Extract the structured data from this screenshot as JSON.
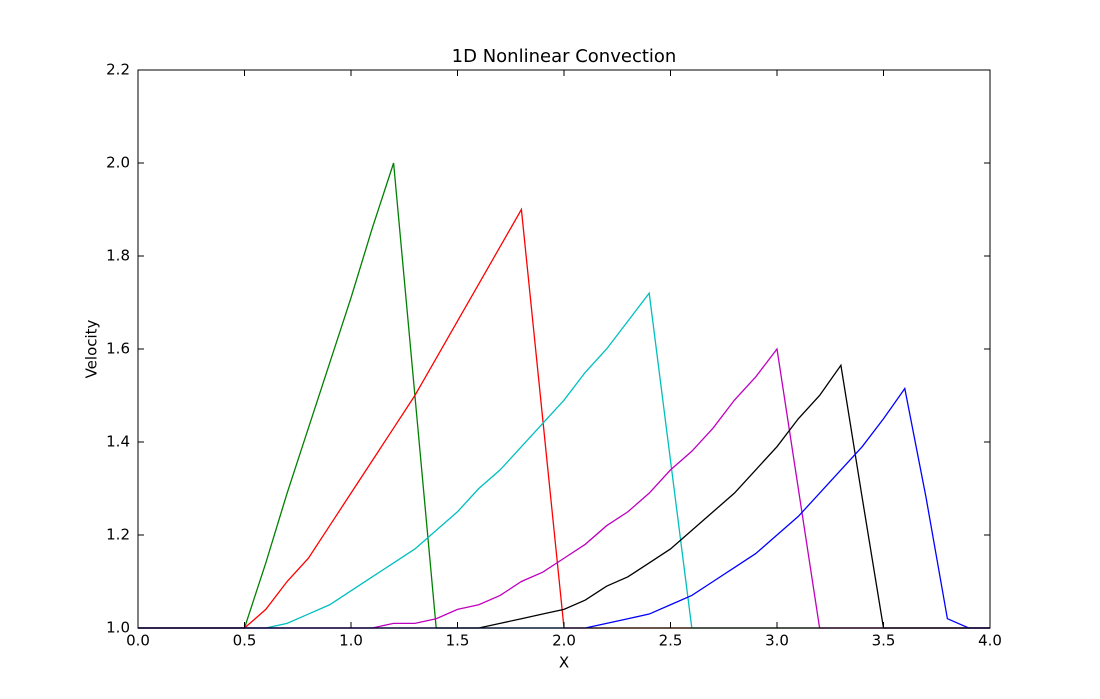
{
  "chart_data": {
    "type": "line",
    "title": "1D Nonlinear Convection",
    "x_label": "X",
    "y_label": "Velocity",
    "x": [
      0,
      0.1,
      0.2,
      0.3,
      0.4,
      0.5,
      0.6,
      0.7,
      0.8,
      0.9,
      1.0,
      1.1,
      1.2,
      1.3,
      1.4,
      1.5,
      1.6,
      1.7,
      1.8,
      1.9,
      2.0,
      2.1,
      2.2,
      2.3,
      2.4,
      2.5,
      2.6,
      2.7,
      2.8,
      2.9,
      3.0,
      3.1,
      3.2,
      3.3,
      3.4,
      3.5,
      3.6,
      3.7,
      3.8,
      3.9,
      4.0
    ],
    "series": [
      {
        "color": "#008000",
        "values": [
          1,
          1,
          1,
          1,
          1,
          1,
          1.14,
          1.29,
          1.43,
          1.57,
          1.71,
          1.86,
          2.0,
          1.5,
          1,
          1,
          1,
          1,
          1,
          1,
          1,
          1,
          1,
          1,
          1,
          1,
          1,
          1,
          1,
          1,
          1,
          1,
          1,
          1,
          1,
          1,
          1,
          1,
          1,
          1,
          1
        ]
      },
      {
        "color": "#ff0000",
        "values": [
          1,
          1,
          1,
          1,
          1,
          1,
          1.04,
          1.1,
          1.15,
          1.22,
          1.29,
          1.36,
          1.43,
          1.5,
          1.58,
          1.66,
          1.74,
          1.82,
          1.9,
          1.45,
          1,
          1,
          1,
          1,
          1,
          1,
          1,
          1,
          1,
          1,
          1,
          1,
          1,
          1,
          1,
          1,
          1,
          1,
          1,
          1,
          1
        ]
      },
      {
        "color": "#00bfbf",
        "values": [
          1,
          1,
          1,
          1,
          1,
          1,
          1,
          1.01,
          1.03,
          1.05,
          1.08,
          1.11,
          1.14,
          1.17,
          1.21,
          1.25,
          1.3,
          1.34,
          1.39,
          1.44,
          1.49,
          1.55,
          1.6,
          1.66,
          1.72,
          1.36,
          1,
          1,
          1,
          1,
          1,
          1,
          1,
          1,
          1,
          1,
          1,
          1,
          1,
          1,
          1
        ]
      },
      {
        "color": "#bf00bf",
        "values": [
          1,
          1,
          1,
          1,
          1,
          1,
          1,
          1,
          1,
          1,
          1,
          1,
          1.01,
          1.01,
          1.02,
          1.04,
          1.05,
          1.07,
          1.1,
          1.12,
          1.15,
          1.18,
          1.22,
          1.25,
          1.29,
          1.34,
          1.38,
          1.43,
          1.49,
          1.54,
          1.6,
          1.3,
          1,
          1,
          1,
          1,
          1,
          1,
          1,
          1,
          1
        ]
      },
      {
        "color": "#000000",
        "values": [
          1,
          1,
          1,
          1,
          1,
          1,
          1,
          1,
          1,
          1,
          1,
          1,
          1,
          1,
          1,
          1,
          1,
          1.01,
          1.02,
          1.03,
          1.04,
          1.06,
          1.09,
          1.11,
          1.14,
          1.17,
          1.21,
          1.25,
          1.29,
          1.34,
          1.39,
          1.45,
          1.5,
          1.565,
          1.28,
          1,
          1,
          1,
          1,
          1,
          1
        ]
      },
      {
        "color": "#0000ff",
        "values": [
          1,
          1,
          1,
          1,
          1,
          1,
          1,
          1,
          1,
          1,
          1,
          1,
          1,
          1,
          1,
          1,
          1,
          1,
          1,
          1,
          1,
          1,
          1.01,
          1.02,
          1.03,
          1.05,
          1.07,
          1.1,
          1.13,
          1.16,
          1.2,
          1.24,
          1.29,
          1.34,
          1.39,
          1.45,
          1.515,
          1.28,
          1.02,
          1,
          1
        ]
      }
    ],
    "xlim": [
      0,
      4
    ],
    "ylim": [
      1,
      2.2
    ],
    "xticks": [
      {
        "value": 0,
        "label": "0.0"
      },
      0.5,
      {
        "value": 1,
        "label": "1.0"
      },
      1.5,
      {
        "value": 2,
        "label": "2.0"
      },
      2.5,
      {
        "value": 3,
        "label": "3.0"
      },
      3.5,
      {
        "value": 4,
        "label": "4.0"
      }
    ],
    "yticks": [
      {
        "value": 1,
        "label": "1.0"
      },
      1.2,
      1.4,
      1.6,
      1.8,
      {
        "value": 2,
        "label": "2.0"
      },
      2.2
    ],
    "grid": false
  }
}
